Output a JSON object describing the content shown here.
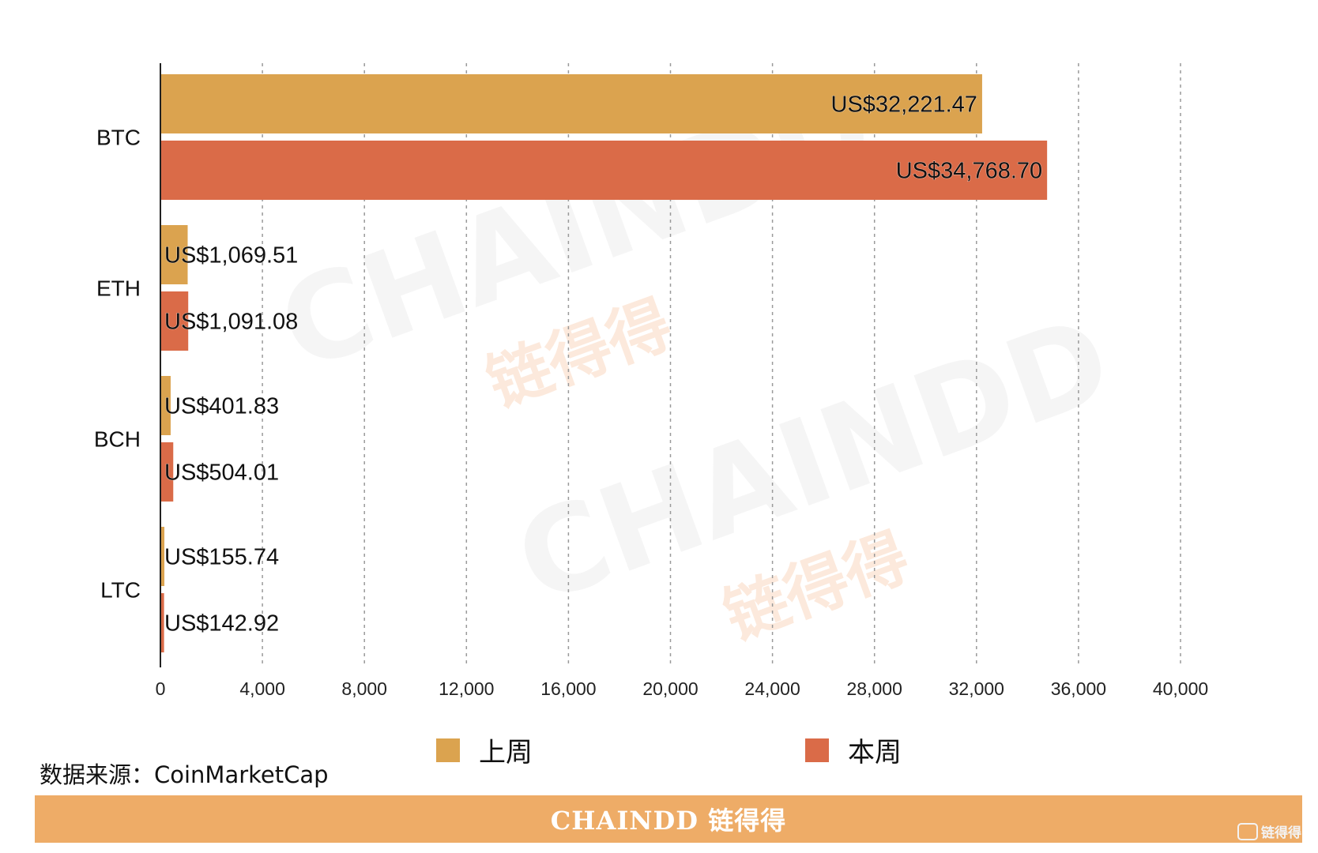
{
  "chart_data": {
    "type": "bar",
    "orientation": "horizontal",
    "categories": [
      "BTC",
      "ETH",
      "BCH",
      "LTC"
    ],
    "series": [
      {
        "name": "上周",
        "color": "#dba34f",
        "values": [
          32221.47,
          1069.51,
          401.83,
          155.74
        ],
        "labels": [
          "US$32,221.47",
          "US$1,069.51",
          "US$401.83",
          "US$155.74"
        ]
      },
      {
        "name": "本周",
        "color": "#da6b48",
        "values": [
          34768.7,
          1091.08,
          504.01,
          142.92
        ],
        "labels": [
          "US$34,768.70",
          "US$1,091.08",
          "US$504.01",
          "US$142.92"
        ]
      }
    ],
    "xlim": [
      0,
      40000
    ],
    "xticks": [
      0,
      4000,
      8000,
      12000,
      16000,
      20000,
      24000,
      28000,
      32000,
      36000,
      40000
    ],
    "xtick_labels": [
      "0",
      "4,000",
      "8,000",
      "12,000",
      "16,000",
      "20,000",
      "24,000",
      "28,000",
      "32,000",
      "36,000",
      "40,000"
    ],
    "grid": "vertical dashed",
    "legend_position": "bottom"
  },
  "source_note": "数据来源：CoinMarketCap",
  "footer": {
    "brand": "CHAINDD 链得得",
    "background": "#eeac67"
  },
  "watermark": {
    "latin": "CHAINDD",
    "cjk": "链得得"
  },
  "corner_logo": {
    "text": "链得得"
  }
}
